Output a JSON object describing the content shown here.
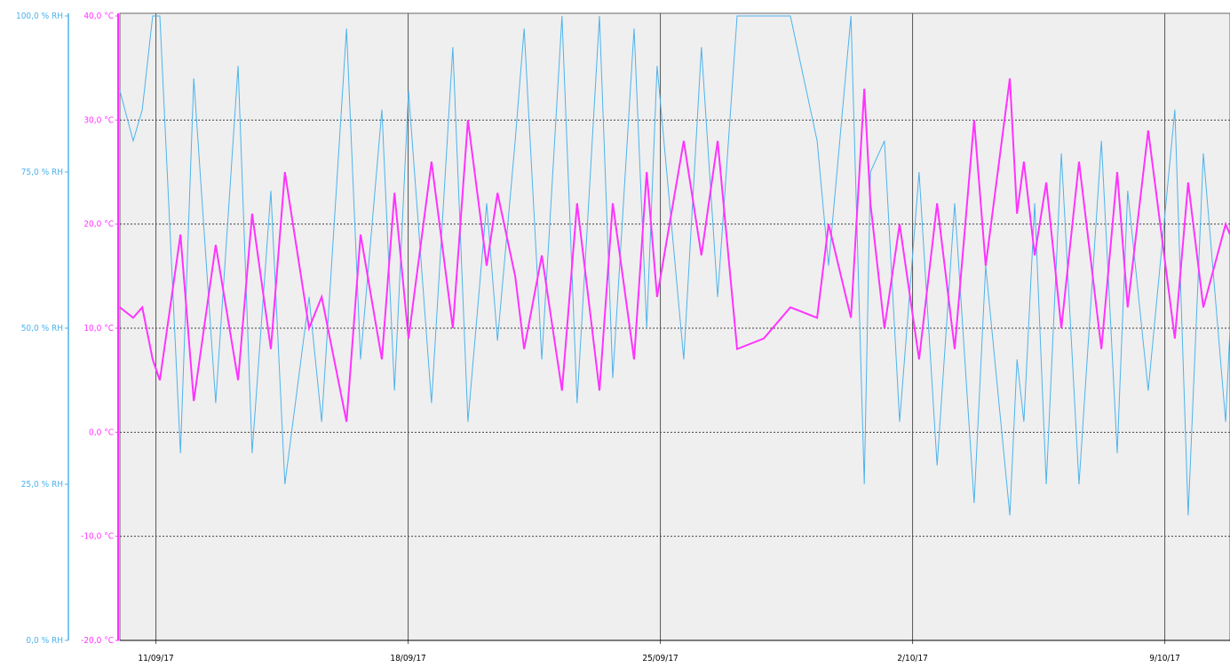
{
  "chart_data": {
    "type": "line",
    "x": [
      0,
      0.37,
      0.62,
      0.91,
      1.11,
      1.68,
      2.05,
      2.66,
      3.28,
      3.67,
      4.19,
      4.58,
      5.25,
      5.6,
      6.29,
      6.68,
      7.27,
      7.62,
      8.01,
      8.65,
      9.24,
      9.66,
      10.18,
      10.48,
      10.97,
      11.22,
      11.71,
      12.27,
      12.69,
      13.31,
      13.68,
      14.27,
      14.62,
      14.91,
      15.65,
      16.14,
      16.59,
      17.13,
      17.87,
      18.61,
      19.35,
      19.67,
      20.29,
      20.66,
      20.83,
      21.22,
      21.64,
      22.18,
      22.68,
      23.17,
      23.71,
      24.03,
      24.7,
      24.9,
      25.09,
      25.39,
      25.71,
      26.13,
      26.62,
      27.24,
      27.68,
      27.97,
      28.54,
      29.28,
      29.65,
      30.07,
      30.69,
      30.81
    ],
    "series": [
      {
        "color": "#ff33ff",
        "values": [
          12,
          11,
          12,
          7,
          5,
          19,
          3,
          18,
          5,
          21,
          8,
          25,
          10,
          13,
          1,
          19,
          7,
          23,
          9,
          26,
          10,
          30,
          16,
          23,
          15,
          8,
          17,
          4,
          22,
          4,
          22,
          7,
          25,
          13,
          28,
          17,
          28,
          8,
          9,
          12,
          11,
          20,
          11,
          33,
          22,
          10,
          20,
          7,
          22,
          8,
          30,
          16,
          34,
          21,
          26,
          17,
          24,
          10,
          26,
          8,
          25,
          12,
          29,
          9,
          24,
          12,
          20,
          19
        ]
      },
      {
        "color": "#4db3ec",
        "axis": "y2",
        "values": [
          88,
          80,
          85,
          100,
          100,
          30,
          90,
          38,
          92,
          30,
          72,
          25,
          55,
          35,
          98,
          45,
          85,
          40,
          88,
          38,
          95,
          35,
          70,
          48,
          80,
          98,
          45,
          100,
          38,
          100,
          42,
          98,
          50,
          92,
          45,
          95,
          55,
          100,
          100,
          100,
          80,
          60,
          100,
          25,
          75,
          80,
          35,
          75,
          28,
          70,
          22,
          60,
          20,
          45,
          35,
          70,
          25,
          78,
          25,
          80,
          30,
          72,
          40,
          85,
          20,
          78,
          35,
          50
        ]
      }
    ],
    "xlim": [
      0,
      30.81
    ],
    "xticks": [
      {
        "value": 1,
        "label": "11/09/17"
      },
      {
        "value": 8,
        "label": "18/09/17"
      },
      {
        "value": 15,
        "label": "25/09/17"
      },
      {
        "value": 22,
        "label": "2/10/17"
      },
      {
        "value": 29,
        "label": "9/10/17"
      }
    ],
    "ylim": [
      -20,
      40
    ],
    "yticks": [
      {
        "value": -20,
        "label": "-20,0 °C"
      },
      {
        "value": -10,
        "label": "-10,0 °C"
      },
      {
        "value": 0,
        "label": "0,0 °C"
      },
      {
        "value": 10,
        "label": "10,0 °C"
      },
      {
        "value": 20,
        "label": "20,0 °C"
      },
      {
        "value": 30,
        "label": "30,0 °C"
      },
      {
        "value": 40,
        "label": "40,0 °C"
      }
    ],
    "y2lim": [
      0,
      100
    ],
    "y2ticks": [
      {
        "value": 0,
        "label": "0,0 % RH"
      },
      {
        "value": 25,
        "label": "25,0 % RH"
      },
      {
        "value": 50,
        "label": "50,0 % RH"
      },
      {
        "value": 75,
        "label": "75,0 % RH"
      },
      {
        "value": 100,
        "label": "100,0 % RH"
      }
    ],
    "grid": true
  }
}
